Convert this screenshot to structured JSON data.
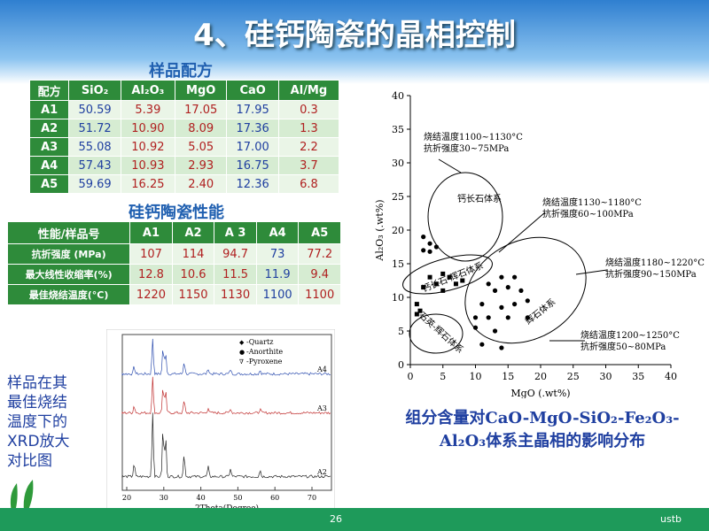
{
  "title": "4、硅钙陶瓷的晶相控制",
  "table1": {
    "title": "样品配方",
    "header": [
      "配方",
      "SiO₂",
      "Al₂O₃",
      "MgO",
      "CaO",
      "Al/Mg"
    ],
    "rows": [
      [
        "A1",
        "50.59",
        "5.39",
        "17.05",
        "17.95",
        "0.3"
      ],
      [
        "A2",
        "51.72",
        "10.90",
        "8.09",
        "17.36",
        "1.3"
      ],
      [
        "A3",
        "55.08",
        "10.92",
        "5.05",
        "17.00",
        "2.2"
      ],
      [
        "A4",
        "57.43",
        "10.93",
        "2.93",
        "16.75",
        "3.7"
      ],
      [
        "A5",
        "59.69",
        "16.25",
        "2.40",
        "12.36",
        "6.8"
      ]
    ]
  },
  "table2": {
    "title": "硅钙陶瓷性能",
    "header": [
      "性能/样品号",
      "A1",
      "A2",
      "A 3",
      "A4",
      "A5"
    ],
    "rows": [
      [
        "抗折强度 (MPa)",
        "107",
        "114",
        "94.7",
        "73",
        "77.2"
      ],
      [
        "最大线性收缩率(%)",
        "12.8",
        "10.6",
        "11.5",
        "11.9",
        "9.4"
      ],
      [
        "最佳烧结温度(°C)",
        "1220",
        "1150",
        "1130",
        "1100",
        "1100"
      ]
    ]
  },
  "chart_data": {
    "type": "scatter",
    "x_label": "MgO (.wt%)",
    "y_label": "Al₂O₃ (.wt%)",
    "xlim": [
      0,
      40
    ],
    "ylim": [
      0,
      40
    ],
    "xticks": [
      0,
      5,
      10,
      15,
      20,
      25,
      30,
      35,
      40
    ],
    "yticks": [
      0,
      5,
      10,
      15,
      20,
      25,
      30,
      35,
      40
    ],
    "color": "#000000",
    "x": [
      2,
      3,
      2,
      4,
      3,
      3,
      5,
      4,
      6,
      2,
      5,
      7,
      8,
      1,
      1.5,
      1,
      12,
      14,
      16,
      15,
      13,
      17,
      11,
      14,
      16,
      18,
      10,
      12,
      15,
      18,
      10,
      13,
      11,
      14
    ],
    "y": [
      19,
      18,
      17,
      17.5,
      16.8,
      13,
      13.5,
      12,
      13,
      11.5,
      11,
      12,
      12.5,
      9,
      8,
      7.5,
      12,
      13,
      13,
      11.5,
      11,
      11,
      9,
      8.5,
      9,
      9.5,
      7,
      7,
      7,
      7,
      5.5,
      5,
      3,
      2.5
    ],
    "annotations": [
      [
        "烧结温度1100~1130°C",
        "抗折强度30~75MPa"
      ],
      [
        "烧结温度1130~1180°C",
        "抗折强度60~100MPa"
      ],
      [
        "烧结温度1180~1220°C",
        "抗折强度90~150MPa"
      ],
      [
        "烧结温度1200~1250°C",
        "抗折强度50~80MPa"
      ]
    ],
    "regions": [
      "钙长石体系",
      "钙长石-辉石体系",
      "辉石体系",
      "石英-辉石体系"
    ]
  },
  "caption": "组分含量对CaO-MgO-SiO₂-Fe₂O₃-Al₂O₃体系主晶相的影响分布",
  "xrd": {
    "legend": [
      "-Quartz",
      "-Anorthite",
      "-Pyroxene"
    ],
    "samples": [
      "A4",
      "A3",
      "A2"
    ],
    "x_label": "2Theta(Degree)",
    "xticks": [
      20,
      30,
      40,
      50,
      60,
      70
    ]
  },
  "side_text": [
    "样品在其",
    "最佳烧结",
    "温度下的",
    "XRD放大",
    "对比图"
  ],
  "page_number": "26",
  "footer": "ustb"
}
